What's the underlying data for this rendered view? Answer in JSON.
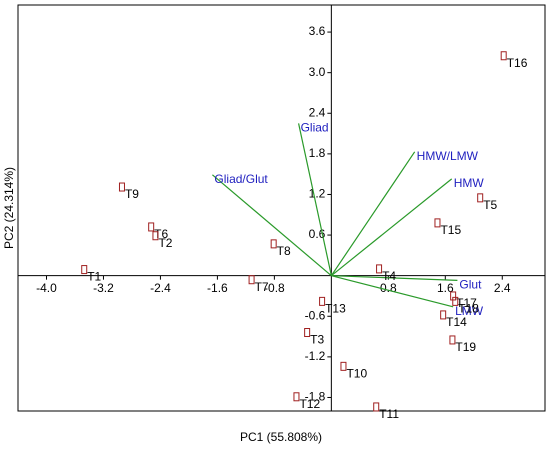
{
  "chart_data": {
    "type": "biplot",
    "x_label": "PC1 (55.808%)",
    "y_label": "PC2 (24.314%)",
    "xlim": [
      -4.4,
      3.0
    ],
    "ylim": [
      -2.0,
      4.0
    ],
    "xticks": [
      {
        "value": -4.0,
        "label": "-4.0"
      },
      -3.2,
      -2.4,
      -1.6,
      -0.8,
      0.8,
      1.6,
      2.4
    ],
    "yticks": [
      3.6,
      {
        "value": 3.0,
        "label": "3.0"
      },
      2.4,
      1.8,
      1.2,
      0.6,
      -0.6,
      -1.2,
      -1.8
    ],
    "points": {
      "color": "#a02020",
      "labels": [
        "T16",
        "T5",
        "T15",
        "T9",
        "T6",
        "T2",
        "T1",
        "T8",
        "T7",
        "T4",
        "T17",
        "T18",
        "T14",
        "T19",
        "T13",
        "T3",
        "T10",
        "T12",
        "T11"
      ],
      "x": [
        2.42,
        2.09,
        1.49,
        -2.94,
        -2.53,
        -2.47,
        -3.47,
        -0.81,
        -1.12,
        0.67,
        1.71,
        1.74,
        1.57,
        1.7,
        -0.13,
        -0.34,
        0.17,
        -0.49,
        0.63
      ],
      "y": [
        3.25,
        1.15,
        0.78,
        1.31,
        0.72,
        0.59,
        0.09,
        0.47,
        -0.06,
        0.1,
        -0.3,
        -0.38,
        -0.58,
        -0.95,
        -0.38,
        -0.84,
        -1.34,
        -1.79,
        -1.94
      ]
    },
    "loadings": {
      "color": "#2a9a2a",
      "label_color": "#1f1fbf",
      "labels": [
        "Gliad",
        "Gliad/Glut",
        "HMW/LMW",
        "HMW",
        "Glut",
        "LMW"
      ],
      "x": [
        -0.46,
        -1.67,
        1.17,
        1.69,
        1.77,
        1.71
      ],
      "y": [
        2.25,
        1.49,
        1.83,
        1.43,
        -0.07,
        -0.46
      ]
    }
  }
}
